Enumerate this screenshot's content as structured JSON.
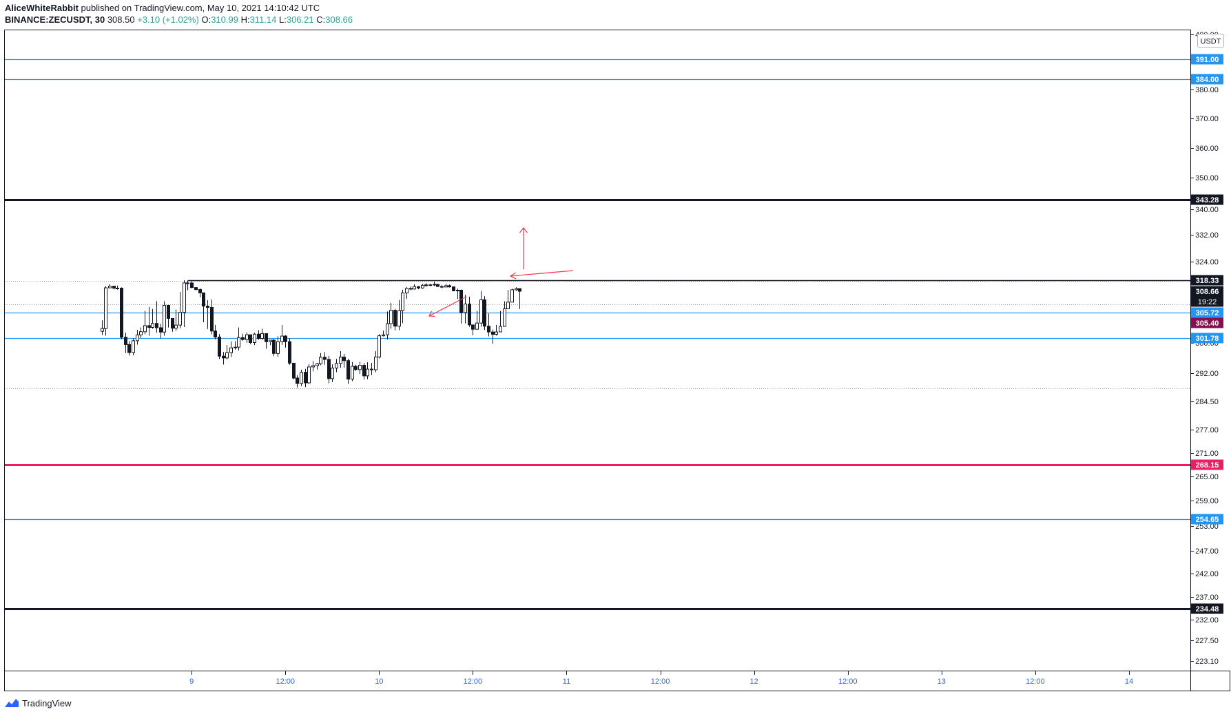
{
  "header": {
    "author": "AliceWhiteRabbit",
    "published": "published on TradingView.com, May 10, 2021 14:10:42 UTC",
    "symbol": "BINANCE:ZECUSDT, 30",
    "last": "308.50",
    "change": "+3.10 (+1.02%)",
    "o_label": "O:",
    "o_value": "310.99",
    "h_label": "H:",
    "h_value": "311.14",
    "l_label": "L:",
    "l_value": "306.21",
    "c_label": "C:",
    "c_value": "308.66"
  },
  "footer": {
    "brand": "TradingView"
  },
  "colors": {
    "up": "#ffffff",
    "down": "#131722",
    "wick": "#131722",
    "blue_line": "#2196f3",
    "black_line": "#131722",
    "pink_line": "#e91e63",
    "maroon_label": "#880e4f",
    "axis_text": "#131722",
    "arrow": "#f23645"
  },
  "chart_data": {
    "type": "candlestick",
    "currency": "USDT",
    "y_ticks": [
      {
        "value": 400,
        "label": "400.00"
      },
      {
        "value": 380,
        "label": "380.00"
      },
      {
        "value": 370,
        "label": "370.00"
      },
      {
        "value": 360,
        "label": "360.00"
      },
      {
        "value": 350,
        "label": "350.00"
      },
      {
        "value": 340,
        "label": "340.00"
      },
      {
        "value": 332,
        "label": "332.00"
      },
      {
        "value": 324,
        "label": "324.00"
      },
      {
        "value": 300,
        "label": "300.00"
      },
      {
        "value": 292,
        "label": "292.00"
      },
      {
        "value": 284.5,
        "label": "284.50"
      },
      {
        "value": 277,
        "label": "277.00"
      },
      {
        "value": 271,
        "label": "271.00"
      },
      {
        "value": 265,
        "label": "265.00"
      },
      {
        "value": 259,
        "label": "259.00"
      },
      {
        "value": 253,
        "label": "253.00"
      },
      {
        "value": 247,
        "label": "247.00"
      },
      {
        "value": 242,
        "label": "242.00"
      },
      {
        "value": 237,
        "label": "237.00"
      },
      {
        "value": 232,
        "label": "232.00"
      },
      {
        "value": 227.5,
        "label": "227.50"
      },
      {
        "value": 223.1,
        "label": "223.10"
      }
    ],
    "x_ticks": [
      {
        "t": 48,
        "label": "9"
      },
      {
        "t": 72,
        "label": "12:00"
      },
      {
        "t": 96,
        "label": "10"
      },
      {
        "t": 120,
        "label": "12:00"
      },
      {
        "t": 144,
        "label": "11"
      },
      {
        "t": 168,
        "label": "12:00"
      },
      {
        "t": 192,
        "label": "12"
      },
      {
        "t": 216,
        "label": "12:00"
      },
      {
        "t": 240,
        "label": "13"
      },
      {
        "t": 264,
        "label": "12:00"
      },
      {
        "t": 288,
        "label": "14"
      },
      {
        "t": 312,
        "label": "12:00"
      }
    ],
    "horizontal_levels": [
      {
        "value": 391.0,
        "label": "391.00",
        "style": "blue"
      },
      {
        "value": 384.0,
        "label": "384.00",
        "style": "blue"
      },
      {
        "value": 343.28,
        "label": "343.28",
        "style": "black-thick"
      },
      {
        "value": 305.72,
        "label": "305.72",
        "style": "blue"
      },
      {
        "value": 301.78,
        "label": "301.78",
        "style": "blue"
      },
      {
        "value": 268.15,
        "label": "268.15",
        "style": "pink-thick"
      },
      {
        "value": 254.65,
        "label": "254.65",
        "style": "blue"
      },
      {
        "value": 234.48,
        "label": "234.48",
        "style": "black-thick"
      }
    ],
    "range_line": {
      "value": 318.33,
      "label": "318.33",
      "from_t": 47
    },
    "price_labels": [
      {
        "value": 308.66,
        "label": "308.66",
        "sub": "19:22",
        "style": "black"
      },
      {
        "value": 305.4,
        "label": "305.40",
        "style": "maroon"
      }
    ],
    "dotted_levels": [
      317.6,
      306.9,
      288.0
    ],
    "candle_series": {
      "start_t": 25,
      "opens": [
        303.4,
        304.05,
        311.67,
        313.13,
        311.4,
        311.4,
        301.97,
        299.56,
        297.44,
        300.79,
        302.52,
        303.3,
        304.75,
        304.33,
        305.28,
        304.25,
        303.21,
        306.72,
        305.54,
        304.14,
        304.88,
        305.75,
        315.98,
        315.94,
        311.93,
        310.19,
        308.44,
        306.61,
        306.43,
        303.46,
        302.03,
        296.5,
        296.03,
        297.42,
        298.69,
        298.88,
        301.9,
        301.24,
        302.57,
        300.13,
        302.72,
        301.66,
        302.86,
        300.42,
        301.01,
        297.21,
        300.44,
        302.26,
        300.45,
        294.65,
        290.71,
        289.25,
        292.23,
        289.43,
        293.65,
        293.99,
        294.48,
        296.21,
        295.63,
        290.56,
        293.35,
        294.56,
        296.25,
        295.33,
        290.42,
        293.82,
        292.94,
        294.08,
        291.29,
        293.07,
        292.9,
        296.26,
        302.33,
        302.55,
        305.22,
        306.04,
        304.62,
        305.99,
        308.43,
        311.15,
        310.57,
        312.75,
        311.54,
        313.88,
        314.27,
        314.29,
        314.71,
        312.82,
        312.4,
        313.56,
        312.51,
        309.01,
        309.59,
        305.72,
        306.9,
        304.93,
        303.89,
        305.37,
        307.48,
        304.62,
        303.23,
        302.67,
        303.25,
        304.58,
        306.24,
        307.16,
        309.95,
        310.99
      ],
      "closes": [
        304.05,
        311.67,
        313.13,
        311.4,
        311.4,
        301.97,
        299.56,
        297.44,
        300.79,
        302.52,
        303.3,
        304.75,
        304.33,
        305.28,
        304.25,
        303.21,
        306.72,
        305.54,
        304.14,
        304.88,
        305.75,
        315.98,
        315.94,
        311.93,
        310.19,
        308.44,
        306.61,
        306.43,
        303.46,
        302.03,
        296.5,
        296.03,
        297.42,
        298.69,
        298.88,
        301.9,
        301.24,
        302.57,
        300.13,
        302.72,
        301.66,
        302.86,
        300.42,
        301.01,
        297.21,
        300.44,
        302.26,
        300.45,
        294.65,
        290.71,
        289.25,
        292.23,
        289.43,
        293.65,
        293.99,
        294.48,
        296.21,
        295.63,
        290.56,
        293.35,
        294.56,
        296.25,
        295.33,
        290.42,
        293.82,
        292.94,
        294.08,
        291.29,
        293.07,
        292.9,
        296.26,
        302.33,
        302.55,
        305.22,
        306.04,
        304.62,
        305.99,
        308.43,
        311.15,
        310.57,
        312.75,
        311.54,
        313.88,
        314.27,
        314.29,
        314.71,
        312.82,
        312.4,
        313.56,
        312.51,
        309.01,
        309.59,
        305.72,
        306.9,
        304.93,
        303.89,
        305.37,
        307.48,
        304.62,
        303.23,
        302.67,
        303.25,
        304.58,
        306.24,
        307.16,
        309.95,
        310.99,
        308.66
      ],
      "highs": [
        305.48,
        313.2,
        314.96,
        313.17,
        313.66,
        312.05,
        303.08,
        300.62,
        301.69,
        303.73,
        304.3,
        305.97,
        306.52,
        306.22,
        307.3,
        305.19,
        307.29,
        306.76,
        305.35,
        306.13,
        308.55,
        318.33,
        316.95,
        317.33,
        311.96,
        311.25,
        307.55,
        307.44,
        307.53,
        304.93,
        302.75,
        297.6,
        299.45,
        300.53,
        300.6,
        304.3,
        302.81,
        303.14,
        302.29,
        303.06,
        303.67,
        304.03,
        302.6,
        301.14,
        301.53,
        302.21,
        304.88,
        302.48,
        301.73,
        294.72,
        291.5,
        292.93,
        293.14,
        294.42,
        295.21,
        294.72,
        297.32,
        297.57,
        296.6,
        294.33,
        295.77,
        297.82,
        297.11,
        295.81,
        294.96,
        294.24,
        295.01,
        294.71,
        294.88,
        294.73,
        297.85,
        302.75,
        303.57,
        305.88,
        307.07,
        306.25,
        307.48,
        310.0,
        312.43,
        312.96,
        314.96,
        313.03,
        314.99,
        315.86,
        315.28,
        317.11,
        315.06,
        314.17,
        315.35,
        314.59,
        312.26,
        310.99,
        310.19,
        308.15,
        307.91,
        304.71,
        305.93,
        308.86,
        307.98,
        305.69,
        303.81,
        304.92,
        305.94,
        307.29,
        309.8,
        310.96,
        312.12,
        311.14
      ],
      "lows": [
        302.5,
        302.36,
        311.28,
        310.24,
        310.12,
        301.33,
        297.3,
        296.67,
        296.71,
        299.55,
        301.77,
        302.68,
        302.35,
        304.0,
        303.06,
        301.63,
        302.34,
        304.29,
        303.31,
        303.46,
        304.11,
        304.42,
        314.91,
        311.28,
        309.26,
        307.83,
        305.42,
        303.97,
        302.7,
        301.23,
        295.76,
        294.3,
        295.64,
        296.27,
        298.22,
        297.95,
        300.81,
        300.06,
        299.66,
        299.43,
        301.12,
        301.08,
        298.43,
        299.4,
        296.49,
        296.34,
        299.48,
        298.75,
        294.2,
        290.36,
        288.2,
        288.6,
        288.3,
        289.11,
        292.47,
        292.96,
        294.11,
        294.26,
        289.31,
        289.62,
        292.26,
        293.46,
        293.47,
        289.15,
        289.87,
        292.61,
        291.8,
        290.31,
        290.41,
        291.48,
        292.28,
        295.91,
        302.17,
        301.25,
        304.0,
        303.58,
        303.66,
        305.33,
        307.6,
        309.43,
        310.14,
        310.49,
        310.88,
        312.44,
        313.18,
        313.16,
        312.55,
        311.28,
        312.07,
        311.9,
        308.66,
        307.6,
        305.24,
        305.3,
        304.48,
        302.41,
        303.83,
        304.49,
        303.75,
        302.17,
        299.75,
        302.37,
        303.79,
        305.52,
        306.48,
        308.95,
        308.97,
        306.21
      ]
    }
  }
}
